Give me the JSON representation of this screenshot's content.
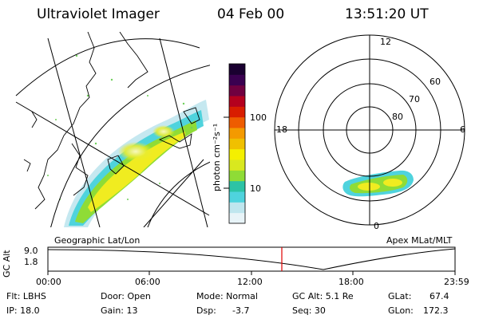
{
  "header": {
    "title": "Ultraviolet Imager",
    "date": "04 Feb 00",
    "time": "13:51:20 UT"
  },
  "colorbar": {
    "unit_label": "photon cm⁻²s⁻¹",
    "tick_100": "100",
    "tick_10": "10",
    "colors": [
      "#e8f4f8",
      "#bfe6ee",
      "#4fd3dd",
      "#2cc3a5",
      "#8fdc36",
      "#d9e81f",
      "#f4f000",
      "#f0c000",
      "#f49a00",
      "#ee5c00",
      "#d81d00",
      "#b4001e",
      "#700040",
      "#3a0050",
      "#1a0030"
    ]
  },
  "left_panel": {
    "caption": "Geographic Lat/Lon"
  },
  "right_panel": {
    "caption": "Apex MLat/MLT",
    "mlt_12": "12",
    "mlt_18": "18",
    "mlt_6": "6",
    "mlt_0": "0",
    "mlat_60": "60",
    "mlat_70": "70",
    "mlat_80": "80"
  },
  "orbit_plot": {
    "ylabel": "GC Alt",
    "y_top": "9.0",
    "y_bottom": "1.8",
    "x_ticks": [
      "00:00",
      "06:00",
      "12:00",
      "18:00",
      "23:59"
    ],
    "marker_color": "#e00000"
  },
  "info": {
    "flt": "Flt: LBHS",
    "ip": "IP: 18.0",
    "door": "Door: Open",
    "gain": "Gain: 13",
    "mode": "Mode: Normal",
    "dsp": "Dsp:",
    "dsp_val": "-3.7",
    "gcalt": "GC Alt: 5.1 Re",
    "seq": "Seq: 30",
    "glat": "GLat:",
    "glat_val": "67.4",
    "glon": "GLon:",
    "glon_val": "172.3"
  }
}
